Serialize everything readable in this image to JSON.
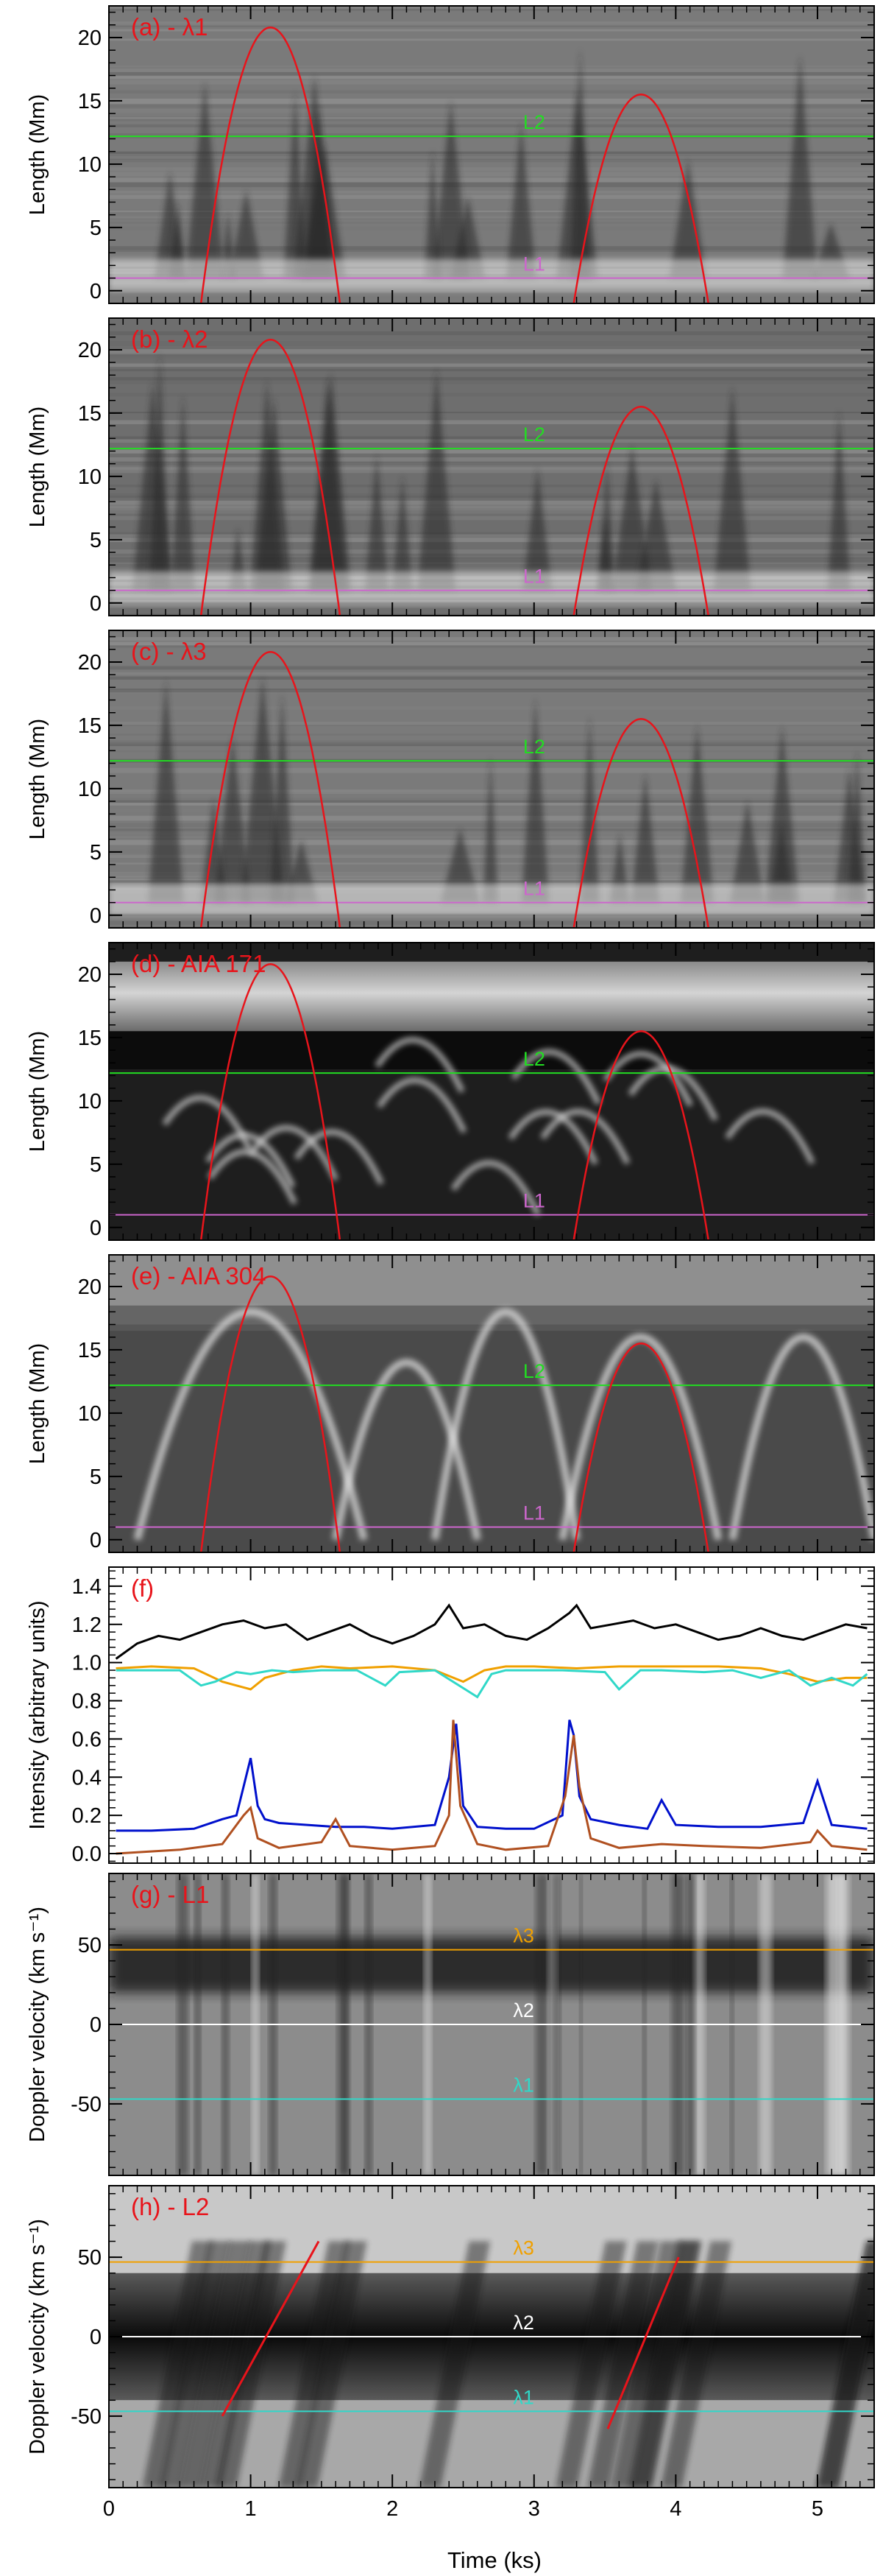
{
  "figure": {
    "xlabel": "Time (ks)",
    "xticks": [
      0,
      1,
      2,
      3,
      4,
      5
    ],
    "xlim": [
      0,
      5.4
    ]
  },
  "colors": {
    "red": "#e8141b",
    "green": "#22dd22",
    "magenta": "#cc66cc",
    "orange": "#f0a000",
    "cyan": "#30d8c8",
    "white": "#ffffff",
    "black": "#000000",
    "blue": "#0010cc",
    "brown": "#b05020"
  },
  "chart_data": [
    {
      "panel": "a",
      "type": "heatmap",
      "title": "(a) - λ1",
      "ylabel": "Length (Mm)",
      "ylim": [
        -1,
        22.5
      ],
      "yticks": [
        0,
        5,
        10,
        15,
        20
      ],
      "lines": [
        {
          "label": "L2",
          "y": 12.2,
          "color": "green",
          "label_x": 2.85
        },
        {
          "label": "L1",
          "y": 1.0,
          "color": "magenta",
          "label_x": 2.85
        }
      ],
      "parabolas": [
        {
          "x_start": 0.65,
          "x_end": 1.63,
          "peak": 21.8
        },
        {
          "x_start": 3.28,
          "x_end": 4.23,
          "peak": 16.5
        }
      ]
    },
    {
      "panel": "b",
      "type": "heatmap",
      "title": "(b) - λ2",
      "ylabel": "Length (Mm)",
      "ylim": [
        -1,
        22.5
      ],
      "yticks": [
        0,
        5,
        10,
        15,
        20
      ],
      "lines": [
        {
          "label": "L2",
          "y": 12.2,
          "color": "green",
          "label_x": 2.85
        },
        {
          "label": "L1",
          "y": 1.0,
          "color": "magenta",
          "label_x": 2.85
        }
      ],
      "parabolas": [
        {
          "x_start": 0.65,
          "x_end": 1.63,
          "peak": 21.8
        },
        {
          "x_start": 3.28,
          "x_end": 4.23,
          "peak": 16.5
        }
      ]
    },
    {
      "panel": "c",
      "type": "heatmap",
      "title": "(c) - λ3",
      "ylabel": "Length (Mm)",
      "ylim": [
        -1,
        22.5
      ],
      "yticks": [
        0,
        5,
        10,
        15,
        20
      ],
      "lines": [
        {
          "label": "L2",
          "y": 12.2,
          "color": "green",
          "label_x": 2.85
        },
        {
          "label": "L1",
          "y": 1.0,
          "color": "magenta",
          "label_x": 2.85
        }
      ],
      "parabolas": [
        {
          "x_start": 0.65,
          "x_end": 1.63,
          "peak": 21.8
        },
        {
          "x_start": 3.28,
          "x_end": 4.23,
          "peak": 16.5
        }
      ]
    },
    {
      "panel": "d",
      "type": "heatmap",
      "title": "(d) - AIA 171",
      "ylabel": "Length (Mm)",
      "ylim": [
        -1,
        22.5
      ],
      "yticks": [
        0,
        5,
        10,
        15,
        20
      ],
      "lines": [
        {
          "label": "L2",
          "y": 12.2,
          "color": "green",
          "label_x": 2.85
        },
        {
          "label": "L1",
          "y": 1.0,
          "color": "magenta",
          "label_x": 2.85
        }
      ],
      "parabolas": [
        {
          "x_start": 0.65,
          "x_end": 1.63,
          "peak": 21.8
        },
        {
          "x_start": 3.28,
          "x_end": 4.23,
          "peak": 16.5
        }
      ]
    },
    {
      "panel": "e",
      "type": "heatmap",
      "title": "(e) - AIA 304",
      "ylabel": "Length (Mm)",
      "ylim": [
        -1,
        22.5
      ],
      "yticks": [
        0,
        5,
        10,
        15,
        20
      ],
      "lines": [
        {
          "label": "L2",
          "y": 12.2,
          "color": "green",
          "label_x": 2.85
        },
        {
          "label": "L1",
          "y": 1.0,
          "color": "magenta",
          "label_x": 2.85
        }
      ],
      "parabolas": [
        {
          "x_start": 0.65,
          "x_end": 1.63,
          "peak": 21.8
        },
        {
          "x_start": 3.28,
          "x_end": 4.23,
          "peak": 16.5
        }
      ]
    },
    {
      "panel": "f",
      "type": "line",
      "title": "(f)",
      "ylabel": "Intensity (arbitrary units)",
      "ylim": [
        -0.05,
        1.5
      ],
      "yticks": [
        0.0,
        0.2,
        0.4,
        0.6,
        0.8,
        1.0,
        1.2,
        1.4
      ],
      "ytick_labels": [
        "0.0",
        "0.2",
        "0.4",
        "0.6",
        "0.8",
        "1.0",
        "1.2",
        "1.4"
      ],
      "series": [
        {
          "name": "black",
          "color": "black",
          "x": [
            0.05,
            0.2,
            0.35,
            0.5,
            0.65,
            0.8,
            0.95,
            1.1,
            1.25,
            1.4,
            1.55,
            1.7,
            1.85,
            2.0,
            2.15,
            2.3,
            2.4,
            2.5,
            2.65,
            2.8,
            2.95,
            3.1,
            3.25,
            3.3,
            3.4,
            3.55,
            3.7,
            3.85,
            4.0,
            4.15,
            4.3,
            4.45,
            4.6,
            4.75,
            4.9,
            5.05,
            5.2,
            5.35
          ],
          "y": [
            1.02,
            1.1,
            1.14,
            1.12,
            1.16,
            1.2,
            1.22,
            1.18,
            1.2,
            1.12,
            1.16,
            1.2,
            1.14,
            1.1,
            1.14,
            1.2,
            1.3,
            1.18,
            1.2,
            1.14,
            1.12,
            1.18,
            1.26,
            1.3,
            1.18,
            1.2,
            1.22,
            1.18,
            1.2,
            1.16,
            1.12,
            1.14,
            1.18,
            1.14,
            1.12,
            1.16,
            1.2,
            1.18
          ]
        },
        {
          "name": "orange",
          "color": "orange",
          "x": [
            0.05,
            0.3,
            0.6,
            0.8,
            1.0,
            1.1,
            1.3,
            1.5,
            1.7,
            2.0,
            2.3,
            2.5,
            2.65,
            2.8,
            3.0,
            3.3,
            3.6,
            4.0,
            4.3,
            4.6,
            4.8,
            5.0,
            5.2,
            5.35
          ],
          "y": [
            0.97,
            0.98,
            0.97,
            0.9,
            0.86,
            0.92,
            0.96,
            0.98,
            0.97,
            0.98,
            0.96,
            0.9,
            0.96,
            0.98,
            0.98,
            0.97,
            0.98,
            0.98,
            0.98,
            0.97,
            0.94,
            0.9,
            0.92,
            0.92
          ]
        },
        {
          "name": "cyan",
          "color": "cyan",
          "x": [
            0.05,
            0.5,
            0.65,
            0.75,
            0.9,
            1.0,
            1.15,
            1.3,
            1.5,
            1.75,
            1.95,
            2.05,
            2.3,
            2.6,
            2.7,
            2.8,
            3.2,
            3.5,
            3.6,
            3.75,
            3.9,
            4.2,
            4.4,
            4.6,
            4.8,
            4.95,
            5.1,
            5.25,
            5.35
          ],
          "y": [
            0.96,
            0.96,
            0.88,
            0.9,
            0.95,
            0.94,
            0.96,
            0.95,
            0.96,
            0.96,
            0.88,
            0.95,
            0.96,
            0.82,
            0.94,
            0.96,
            0.96,
            0.95,
            0.86,
            0.96,
            0.96,
            0.95,
            0.96,
            0.92,
            0.96,
            0.88,
            0.92,
            0.88,
            0.94
          ]
        },
        {
          "name": "blue",
          "color": "blue",
          "x": [
            0.05,
            0.3,
            0.6,
            0.8,
            0.9,
            0.95,
            1.0,
            1.05,
            1.1,
            1.2,
            1.4,
            1.6,
            1.8,
            2.0,
            2.3,
            2.4,
            2.45,
            2.5,
            2.6,
            2.8,
            3.0,
            3.2,
            3.25,
            3.28,
            3.32,
            3.4,
            3.6,
            3.8,
            3.9,
            4.0,
            4.3,
            4.6,
            4.9,
            5.0,
            5.1,
            5.35
          ],
          "y": [
            0.12,
            0.12,
            0.13,
            0.18,
            0.2,
            0.35,
            0.5,
            0.25,
            0.18,
            0.16,
            0.15,
            0.14,
            0.14,
            0.13,
            0.15,
            0.4,
            0.68,
            0.25,
            0.14,
            0.13,
            0.13,
            0.2,
            0.7,
            0.62,
            0.3,
            0.18,
            0.15,
            0.13,
            0.28,
            0.15,
            0.14,
            0.14,
            0.16,
            0.38,
            0.15,
            0.13
          ]
        },
        {
          "name": "brown",
          "color": "brown",
          "x": [
            0.05,
            0.5,
            0.8,
            0.95,
            1.0,
            1.05,
            1.2,
            1.5,
            1.6,
            1.7,
            2.0,
            2.3,
            2.4,
            2.43,
            2.48,
            2.6,
            2.8,
            3.1,
            3.22,
            3.28,
            3.32,
            3.4,
            3.6,
            3.9,
            4.2,
            4.6,
            4.95,
            5.0,
            5.1,
            5.35
          ],
          "y": [
            0.0,
            0.02,
            0.05,
            0.2,
            0.24,
            0.08,
            0.03,
            0.06,
            0.18,
            0.04,
            0.02,
            0.04,
            0.2,
            0.7,
            0.25,
            0.05,
            0.02,
            0.04,
            0.3,
            0.62,
            0.35,
            0.08,
            0.03,
            0.05,
            0.04,
            0.03,
            0.06,
            0.12,
            0.04,
            0.02
          ]
        }
      ]
    },
    {
      "panel": "g",
      "type": "heatmap",
      "title": "(g) - L1",
      "ylabel": "Doppler velocity (km s⁻¹)",
      "ylim": [
        -95,
        95
      ],
      "yticks": [
        -50,
        0,
        50
      ],
      "lines": [
        {
          "label": "λ3",
          "y": 47,
          "color": "orange",
          "label_x": 2.78
        },
        {
          "label": "λ2",
          "y": 0,
          "color": "white",
          "label_x": 2.78
        },
        {
          "label": "λ1",
          "y": -47,
          "color": "cyan",
          "label_x": 2.78
        }
      ],
      "segments": []
    },
    {
      "panel": "h",
      "type": "heatmap",
      "title": "(h) - L2",
      "ylabel": "Doppler velocity (km s⁻¹)",
      "ylim": [
        -95,
        95
      ],
      "yticks": [
        -50,
        0,
        50
      ],
      "lines": [
        {
          "label": "λ3",
          "y": 47,
          "color": "orange",
          "label_x": 2.78
        },
        {
          "label": "λ2",
          "y": 0,
          "color": "white",
          "label_x": 2.78
        },
        {
          "label": "λ1",
          "y": -47,
          "color": "cyan",
          "label_x": 2.78
        }
      ],
      "segments": [
        {
          "x1": 0.8,
          "y1": -50,
          "x2": 1.48,
          "y2": 60
        },
        {
          "x1": 3.52,
          "y1": -58,
          "x2": 4.02,
          "y2": 50
        }
      ]
    }
  ]
}
